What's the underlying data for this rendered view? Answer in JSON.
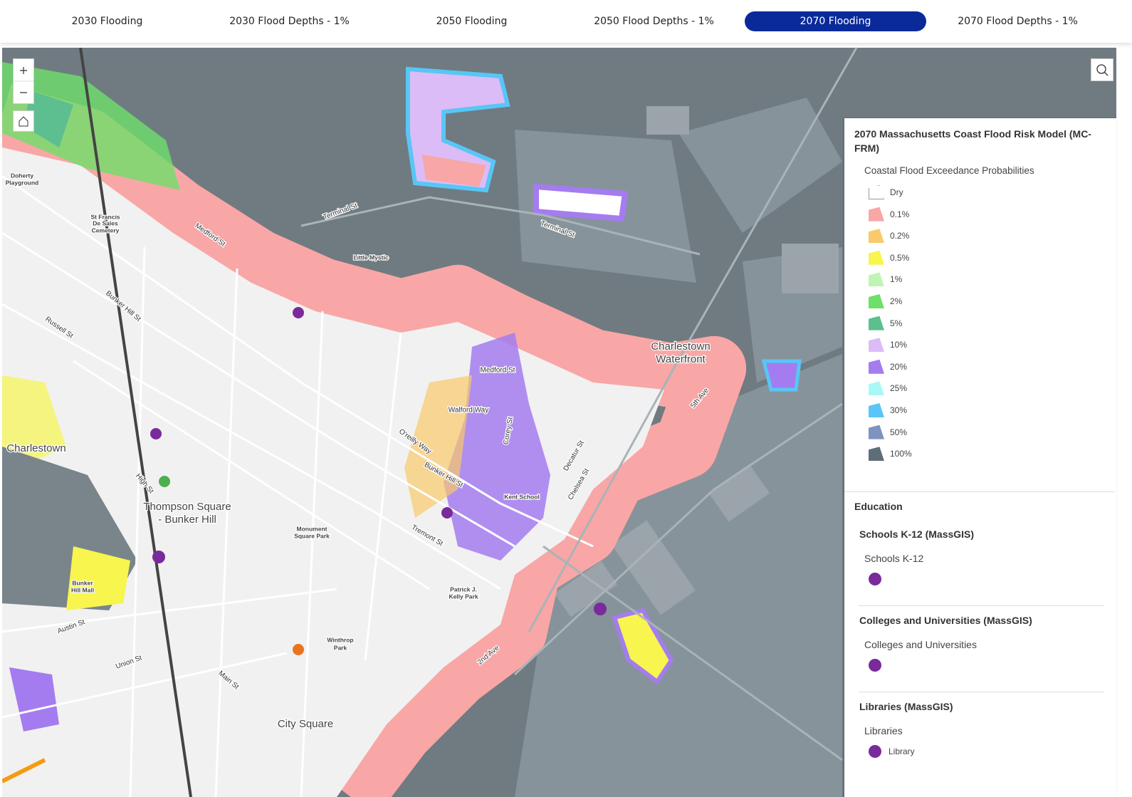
{
  "tabs": [
    "2030 Flooding",
    "2030 Flood Depths - 1%",
    "2050 Flooding",
    "2050 Flood Depths - 1%",
    "2070 Flooding",
    "2070 Flood Depths - 1%"
  ],
  "map": {
    "labels": [
      "Terminal St",
      "Terminal St",
      "Little Mystic",
      "Medford St",
      "Medford St",
      "Charlestown",
      "Waterfront",
      "Walford Way",
      "O'reilly Way",
      "Bunker Hill St",
      "Kent School",
      "Thompson Square",
      "- Bunker Hill",
      "Charlestown",
      "City Square",
      "Monument",
      "Square Park",
      "Patrick J.",
      "Kelly Park",
      "Winthrop",
      "Park",
      "Bunker",
      "Hill Mall",
      "Doherty",
      "Playground",
      "St Francis",
      "De Sales",
      "Cemetery",
      "Chelsea St",
      "Decatur St",
      "Corey St",
      "5th Ave",
      "2nd Ave",
      "Main St",
      "Austin St",
      "Union St",
      "Tremont St",
      "Bunker Hill St",
      "Russell St",
      "High St"
    ]
  },
  "legend": {
    "title": "2070 Massachusetts Coast Flood Risk Model (MC-FRM)",
    "subtitle": "Coastal Flood Exceedance Probabilities",
    "items": [
      {
        "label": "Dry",
        "color": "#ffffff"
      },
      {
        "label": "0.1%",
        "color": "#f8a6a6"
      },
      {
        "label": "0.2%",
        "color": "#f9c96a"
      },
      {
        "label": "0.5%",
        "color": "#f7f54e"
      },
      {
        "label": "1%",
        "color": "#bff5b4"
      },
      {
        "label": "2%",
        "color": "#6ee06a"
      },
      {
        "label": "5%",
        "color": "#5dbf8f"
      },
      {
        "label": "10%",
        "color": "#dcbcf6"
      },
      {
        "label": "20%",
        "color": "#a47cf0"
      },
      {
        "label": "25%",
        "color": "#a8f8f8"
      },
      {
        "label": "30%",
        "color": "#58c6f6"
      },
      {
        "label": "50%",
        "color": "#7f93c0"
      },
      {
        "label": "100%",
        "color": "#5e6e78"
      }
    ]
  },
  "education": {
    "title": "Education",
    "groups": [
      {
        "title": "Schools K-12 (MassGIS)",
        "layer": "Schools K-12"
      },
      {
        "title": "Colleges and Universities (MassGIS)",
        "layer": "Colleges and Universities"
      },
      {
        "title": "Libraries (MassGIS)",
        "layer": "Libraries",
        "item": "Library"
      }
    ]
  }
}
